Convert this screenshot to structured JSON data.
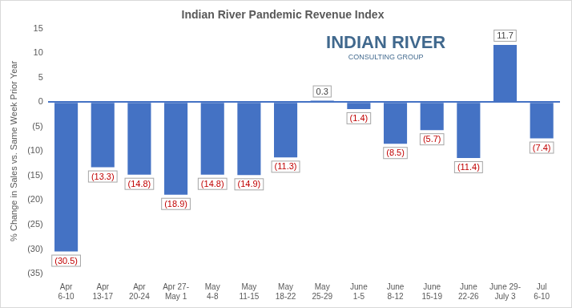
{
  "chart_data": {
    "type": "bar",
    "title": "Indian River Pandemic Revenue Index",
    "y_label": "% Change in Sales vs. Same Week Prior Year",
    "annotations": [
      "INDIAN RIVER",
      "CONSULTING GROUP"
    ],
    "categories": [
      "Apr\n6-10",
      "Apr\n13-17",
      "Apr\n20-24",
      "Apr 27-\nMay 1",
      "May\n4-8",
      "May\n11-15",
      "May\n18-22",
      "May\n25-29",
      "June\n1-5",
      "June\n8-12",
      "June\n15-19",
      "June\n22-26",
      "June 29-\nJuly 3",
      "Jul\n6-10"
    ],
    "values": [
      -30.5,
      -13.3,
      -14.8,
      -18.9,
      -14.8,
      -14.9,
      -11.3,
      0.3,
      -1.4,
      -8.5,
      -5.7,
      -11.4,
      11.7,
      -7.4
    ],
    "value_labels": [
      "(30.5)",
      "(13.3)",
      "(14.8)",
      "(18.9)",
      "(14.8)",
      "(14.9)",
      "(11.3)",
      "0.3",
      "(1.4)",
      "(8.5)",
      "(5.7)",
      "(11.4)",
      "11.7",
      "(7.4)"
    ],
    "color": "#4472c4",
    "ylim": [
      -35,
      15
    ],
    "yticks": [
      {
        "value": -35,
        "label": "(35)"
      },
      {
        "value": -30,
        "label": "(30)"
      },
      {
        "value": -25,
        "label": "(25)"
      },
      {
        "value": -20,
        "label": "(20)"
      },
      {
        "value": -15,
        "label": "(15)"
      },
      {
        "value": -10,
        "label": "(10)"
      },
      {
        "value": -5,
        "label": "(5)"
      },
      0,
      5,
      10,
      15
    ],
    "grid": false,
    "data_labels": true
  }
}
